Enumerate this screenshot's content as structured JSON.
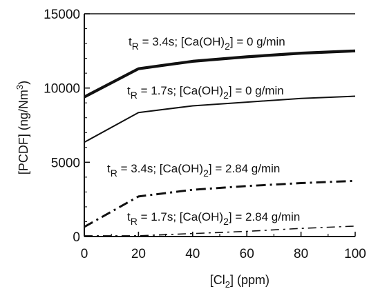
{
  "chart_data": {
    "type": "line",
    "xlabel": "[Cl2] (ppm)",
    "ylabel": "[PCDF] (ng/Nm3)",
    "xlim": [
      0,
      100
    ],
    "ylim": [
      0,
      15000
    ],
    "x_ticks": [
      "0",
      "20",
      "40",
      "60",
      "80",
      "100"
    ],
    "y_ticks": [
      "0",
      "5000",
      "10000",
      "15000"
    ],
    "grid": false,
    "series": [
      {
        "name": "tR = 3.4s; [Ca(OH)2] = 0 g/min",
        "style": "thick-solid",
        "x": [
          0,
          20,
          40,
          60,
          80,
          100
        ],
        "y": [
          9400,
          11300,
          11800,
          12100,
          12350,
          12500
        ]
      },
      {
        "name": "tR = 1.7s; [Ca(OH)2] = 0 g/min",
        "style": "thin-solid",
        "x": [
          0,
          20,
          40,
          60,
          80,
          100
        ],
        "y": [
          6350,
          8350,
          8800,
          9050,
          9300,
          9450
        ]
      },
      {
        "name": "tR = 3.4s; [Ca(OH)2] = 2.84 g/min",
        "style": "thick-dashdot",
        "x": [
          0,
          20,
          40,
          60,
          80,
          100
        ],
        "y": [
          650,
          2700,
          3150,
          3400,
          3600,
          3750
        ]
      },
      {
        "name": "tR = 1.7s; [Ca(OH)2] = 2.84 g/min",
        "style": "thin-dashdot",
        "x": [
          0,
          20,
          40,
          60,
          80,
          100
        ],
        "y": [
          50,
          50,
          200,
          350,
          550,
          700
        ]
      }
    ]
  }
}
